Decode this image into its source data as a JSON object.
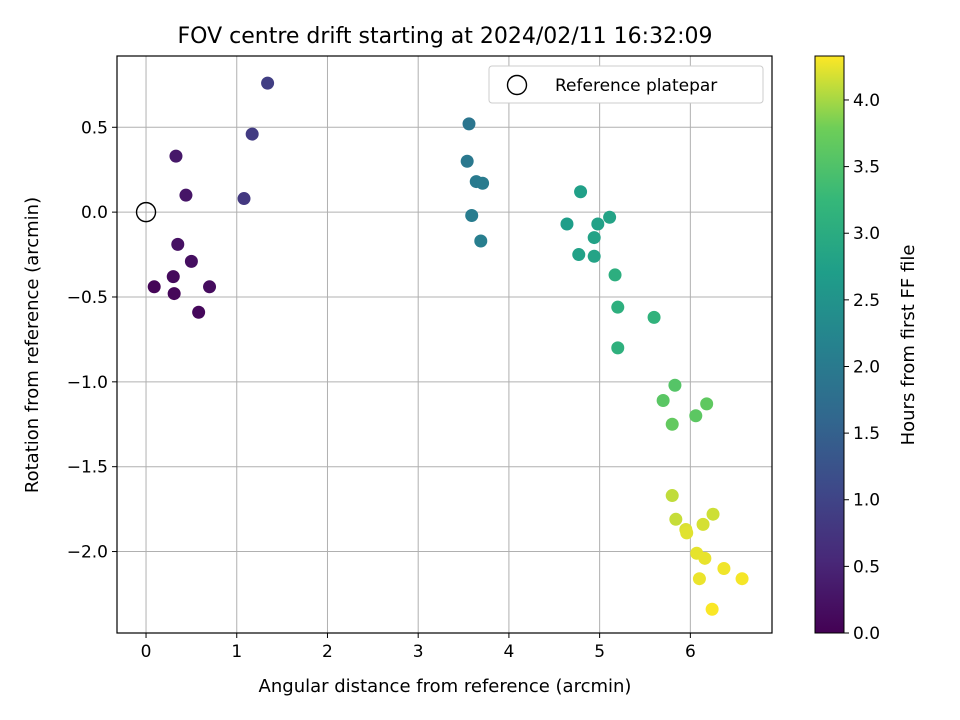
{
  "chart_data": {
    "type": "scatter",
    "title": "FOV centre drift starting at 2024/02/11 16:32:09",
    "xlabel": "Angular distance from reference (arcmin)",
    "ylabel": "Rotation from reference (arcmin)",
    "xlim": [
      -0.32,
      6.9
    ],
    "ylim": [
      -2.48,
      0.92
    ],
    "xticks": [
      0,
      1,
      2,
      3,
      4,
      5,
      6
    ],
    "xtick_labels": [
      "0",
      "1",
      "2",
      "3",
      "4",
      "5",
      "6"
    ],
    "yticks": [
      0.5,
      0.0,
      -0.5,
      -1.0,
      -1.5,
      -2.0
    ],
    "ytick_labels": [
      "0.5",
      "0.0",
      "−0.5",
      "−1.0",
      "−1.5",
      "−2.0"
    ],
    "grid": true,
    "legend": {
      "position": "top-right",
      "entries": [
        "Reference platepar"
      ]
    },
    "reference_point": {
      "x": 0.0,
      "y": 0.0,
      "label": "Reference platepar"
    },
    "colorbar": {
      "label": "Hours from first FF file",
      "min": 0.0,
      "max": 4.33,
      "colormap": "viridis",
      "ticks": [
        0.0,
        0.5,
        1.0,
        1.5,
        2.0,
        2.5,
        3.0,
        3.5,
        4.0
      ],
      "tick_labels": [
        "0.0",
        "0.5",
        "1.0",
        "1.5",
        "2.0",
        "2.5",
        "3.0",
        "3.5",
        "4.0"
      ]
    },
    "points": [
      {
        "x": 0.09,
        "y": -0.44,
        "c": 0.05
      },
      {
        "x": 0.31,
        "y": -0.48,
        "c": 0.08
      },
      {
        "x": 0.3,
        "y": -0.38,
        "c": 0.12
      },
      {
        "x": 0.58,
        "y": -0.59,
        "c": 0.1
      },
      {
        "x": 0.7,
        "y": -0.44,
        "c": 0.15
      },
      {
        "x": 0.5,
        "y": -0.29,
        "c": 0.18
      },
      {
        "x": 0.35,
        "y": -0.19,
        "c": 0.22
      },
      {
        "x": 0.44,
        "y": 0.1,
        "c": 0.28
      },
      {
        "x": 0.33,
        "y": 0.33,
        "c": 0.32
      },
      {
        "x": 1.08,
        "y": 0.08,
        "c": 0.8
      },
      {
        "x": 1.17,
        "y": 0.46,
        "c": 0.85
      },
      {
        "x": 1.34,
        "y": 0.76,
        "c": 0.9
      },
      {
        "x": 3.56,
        "y": 0.52,
        "c": 1.9
      },
      {
        "x": 3.54,
        "y": 0.3,
        "c": 1.95
      },
      {
        "x": 3.64,
        "y": 0.18,
        "c": 2.0
      },
      {
        "x": 3.71,
        "y": 0.17,
        "c": 2.02
      },
      {
        "x": 3.59,
        "y": -0.02,
        "c": 2.05
      },
      {
        "x": 3.69,
        "y": -0.17,
        "c": 2.08
      },
      {
        "x": 4.79,
        "y": 0.12,
        "c": 2.75
      },
      {
        "x": 4.64,
        "y": -0.07,
        "c": 2.7
      },
      {
        "x": 4.98,
        "y": -0.07,
        "c": 2.78
      },
      {
        "x": 5.11,
        "y": -0.03,
        "c": 2.82
      },
      {
        "x": 4.94,
        "y": -0.15,
        "c": 2.8
      },
      {
        "x": 4.77,
        "y": -0.25,
        "c": 2.78
      },
      {
        "x": 4.94,
        "y": -0.26,
        "c": 2.82
      },
      {
        "x": 5.17,
        "y": -0.37,
        "c": 3.05
      },
      {
        "x": 5.2,
        "y": -0.56,
        "c": 3.08
      },
      {
        "x": 5.6,
        "y": -0.62,
        "c": 3.15
      },
      {
        "x": 5.2,
        "y": -0.8,
        "c": 3.1
      },
      {
        "x": 5.83,
        "y": -1.02,
        "c": 3.55
      },
      {
        "x": 5.7,
        "y": -1.11,
        "c": 3.6
      },
      {
        "x": 6.18,
        "y": -1.13,
        "c": 3.65
      },
      {
        "x": 6.06,
        "y": -1.2,
        "c": 3.62
      },
      {
        "x": 5.8,
        "y": -1.25,
        "c": 3.68
      },
      {
        "x": 5.8,
        "y": -1.67,
        "c": 4.1
      },
      {
        "x": 6.25,
        "y": -1.78,
        "c": 4.15
      },
      {
        "x": 5.84,
        "y": -1.81,
        "c": 4.12
      },
      {
        "x": 6.14,
        "y": -1.84,
        "c": 4.18
      },
      {
        "x": 5.95,
        "y": -1.87,
        "c": 4.2
      },
      {
        "x": 5.96,
        "y": -1.89,
        "c": 4.22
      },
      {
        "x": 6.07,
        "y": -2.01,
        "c": 4.24
      },
      {
        "x": 6.16,
        "y": -2.04,
        "c": 4.25
      },
      {
        "x": 6.37,
        "y": -2.1,
        "c": 4.28
      },
      {
        "x": 6.1,
        "y": -2.16,
        "c": 4.26
      },
      {
        "x": 6.57,
        "y": -2.16,
        "c": 4.3
      },
      {
        "x": 6.24,
        "y": -2.34,
        "c": 4.32
      }
    ]
  }
}
